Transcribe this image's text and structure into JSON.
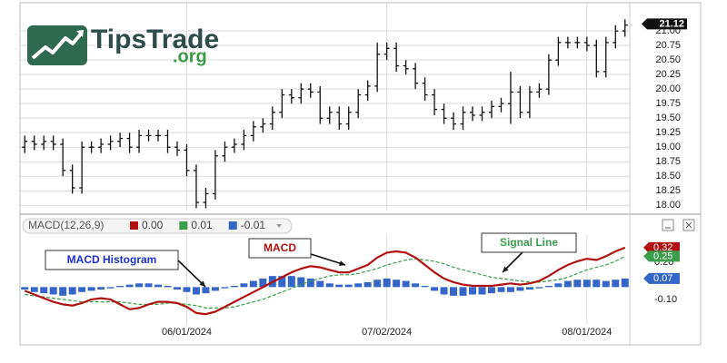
{
  "logo": {
    "name": "TipsTrade",
    "suffix": ".org"
  },
  "chart_data": [
    {
      "type": "ohlc",
      "color": "#111111",
      "ylim": [
        17.91,
        21.47
      ],
      "yticks": [
        {
          "value": 18,
          "label": "18.00"
        },
        {
          "value": 18.25,
          "label": "18.25"
        },
        {
          "value": 18.5,
          "label": "18.50"
        },
        {
          "value": 18.75,
          "label": "18.75"
        },
        {
          "value": 19,
          "label": "19.00"
        },
        {
          "value": 19.25,
          "label": "19.25"
        },
        {
          "value": 19.5,
          "label": "19.50"
        },
        {
          "value": 19.75,
          "label": "19.75"
        },
        {
          "value": 20,
          "label": "20.00"
        },
        {
          "value": 20.25,
          "label": "20.25"
        },
        {
          "value": 20.5,
          "label": "20.50"
        },
        {
          "value": 20.75,
          "label": "20.75"
        },
        {
          "value": 21,
          "label": "21.00"
        }
      ],
      "grid": true,
      "last_price": {
        "value": 21.12,
        "label": "21.12"
      },
      "open": [
        19.0,
        19.1,
        19.05,
        19.1,
        19.05,
        18.6,
        18.3,
        19.0,
        19.0,
        19.05,
        19.1,
        19.15,
        19.0,
        19.2,
        19.2,
        19.2,
        19.0,
        18.95,
        18.6,
        18.05,
        18.2,
        18.85,
        19.0,
        19.05,
        19.2,
        19.35,
        19.4,
        19.6,
        19.9,
        19.85,
        20.0,
        19.95,
        19.5,
        19.6,
        19.4,
        19.6,
        19.9,
        20.05,
        20.6,
        20.7,
        20.4,
        20.35,
        20.1,
        19.9,
        19.65,
        19.5,
        19.4,
        19.6,
        19.55,
        19.6,
        19.7,
        19.75,
        19.95,
        19.6,
        19.95,
        20.0,
        20.5,
        20.8,
        20.8,
        20.8,
        20.75,
        20.3,
        20.8,
        21.0
      ],
      "high": [
        19.2,
        19.2,
        19.2,
        19.2,
        19.15,
        18.7,
        19.1,
        19.1,
        19.15,
        19.2,
        19.25,
        19.25,
        19.3,
        19.3,
        19.3,
        19.3,
        19.1,
        19.05,
        18.7,
        18.3,
        18.95,
        19.1,
        19.15,
        19.3,
        19.45,
        19.5,
        19.7,
        20.0,
        20.0,
        20.1,
        20.1,
        20.05,
        19.7,
        19.7,
        19.7,
        20.0,
        20.15,
        20.8,
        20.8,
        20.8,
        20.5,
        20.45,
        20.2,
        20.0,
        19.75,
        19.6,
        19.7,
        19.7,
        19.7,
        19.8,
        19.85,
        20.3,
        20.05,
        20.05,
        20.1,
        20.6,
        20.9,
        20.9,
        20.9,
        20.9,
        20.85,
        20.9,
        21.1,
        21.2
      ],
      "low": [
        18.9,
        18.95,
        18.95,
        18.95,
        18.5,
        18.2,
        18.2,
        18.9,
        18.9,
        18.95,
        19.0,
        18.9,
        18.9,
        19.1,
        19.1,
        18.9,
        18.85,
        18.5,
        17.95,
        17.95,
        18.1,
        18.75,
        18.9,
        18.95,
        19.1,
        19.25,
        19.3,
        19.5,
        19.75,
        19.75,
        19.85,
        19.4,
        19.4,
        19.3,
        19.3,
        19.5,
        19.8,
        19.95,
        20.5,
        20.3,
        20.25,
        20.0,
        19.8,
        19.55,
        19.4,
        19.3,
        19.3,
        19.45,
        19.45,
        19.5,
        19.6,
        19.4,
        19.5,
        19.5,
        19.85,
        19.9,
        20.4,
        20.7,
        20.7,
        20.65,
        20.2,
        20.2,
        20.7,
        20.9
      ],
      "close": [
        19.1,
        19.05,
        19.1,
        19.05,
        18.6,
        18.3,
        19.0,
        19.0,
        19.05,
        19.1,
        19.15,
        19.0,
        19.2,
        19.2,
        19.2,
        19.0,
        18.95,
        18.6,
        18.05,
        18.2,
        18.85,
        19.0,
        19.05,
        19.2,
        19.35,
        19.4,
        19.6,
        19.9,
        19.85,
        20.0,
        19.95,
        19.5,
        19.6,
        19.4,
        19.6,
        19.9,
        20.05,
        20.6,
        20.7,
        20.4,
        20.35,
        20.1,
        19.9,
        19.65,
        19.5,
        19.4,
        19.6,
        19.55,
        19.6,
        19.7,
        19.75,
        19.95,
        19.6,
        19.95,
        20.0,
        20.5,
        20.8,
        20.8,
        20.8,
        20.75,
        20.3,
        20.8,
        21.0,
        21.1
      ]
    },
    {
      "type": "macd",
      "title": "MACD(12,26,9)",
      "categories": [
        null,
        null,
        null,
        null,
        null,
        null,
        null,
        null,
        null,
        null,
        null,
        null,
        null,
        null,
        null,
        null,
        null,
        "06/01/2024",
        null,
        null,
        null,
        null,
        null,
        null,
        null,
        null,
        null,
        null,
        null,
        null,
        null,
        null,
        null,
        null,
        null,
        null,
        null,
        null,
        "07/02/2024",
        null,
        null,
        null,
        null,
        null,
        null,
        null,
        null,
        null,
        null,
        null,
        null,
        null,
        null,
        null,
        null,
        null,
        null,
        null,
        null,
        "08/01/2024",
        null,
        null,
        null,
        null
      ],
      "ylim": [
        -0.41,
        0.43
      ],
      "yticks": [
        {
          "value": 0.2,
          "label": "0.20"
        },
        {
          "value": -0.1,
          "label": "-0.10"
        }
      ],
      "series": [
        {
          "name": "MACD",
          "type": "line",
          "color": "#b01212",
          "legend_label": "0.00",
          "last_tag": {
            "value": 0.32,
            "label": "0.32"
          },
          "values": [
            -0.03,
            -0.06,
            -0.09,
            -0.12,
            -0.14,
            -0.15,
            -0.13,
            -0.1,
            -0.09,
            -0.1,
            -0.14,
            -0.18,
            -0.17,
            -0.14,
            -0.12,
            -0.12,
            -0.13,
            -0.16,
            -0.21,
            -0.22,
            -0.2,
            -0.16,
            -0.12,
            -0.08,
            -0.04,
            0.0,
            0.04,
            0.08,
            0.12,
            0.15,
            0.17,
            0.16,
            0.14,
            0.12,
            0.12,
            0.15,
            0.18,
            0.24,
            0.28,
            0.29,
            0.28,
            0.24,
            0.18,
            0.12,
            0.07,
            0.04,
            0.02,
            0.01,
            0.01,
            0.01,
            0.02,
            0.03,
            0.02,
            0.03,
            0.05,
            0.09,
            0.14,
            0.18,
            0.21,
            0.23,
            0.22,
            0.25,
            0.29,
            0.32
          ]
        },
        {
          "name": "Signal Line",
          "type": "line",
          "dashed": true,
          "color": "#3a9e4a",
          "legend_label": "0.01",
          "last_tag": {
            "value": 0.25,
            "label": "0.25"
          },
          "values": [
            -0.06,
            -0.07,
            -0.08,
            -0.09,
            -0.1,
            -0.11,
            -0.12,
            -0.12,
            -0.12,
            -0.12,
            -0.12,
            -0.13,
            -0.14,
            -0.14,
            -0.14,
            -0.13,
            -0.13,
            -0.14,
            -0.15,
            -0.17,
            -0.17,
            -0.17,
            -0.16,
            -0.14,
            -0.12,
            -0.1,
            -0.07,
            -0.04,
            -0.01,
            0.02,
            0.05,
            0.07,
            0.09,
            0.1,
            0.1,
            0.11,
            0.13,
            0.15,
            0.18,
            0.2,
            0.22,
            0.23,
            0.22,
            0.21,
            0.19,
            0.16,
            0.14,
            0.12,
            0.1,
            0.08,
            0.07,
            0.06,
            0.05,
            0.04,
            0.04,
            0.05,
            0.06,
            0.08,
            0.11,
            0.14,
            0.16,
            0.18,
            0.21,
            0.25
          ]
        },
        {
          "name": "MACD Histogram",
          "type": "bar",
          "color": "#3466c8",
          "legend_label": "-0.01",
          "last_tag": {
            "value": 0.07,
            "label": "0.07"
          },
          "values": [
            -0.02,
            -0.04,
            -0.05,
            -0.06,
            -0.07,
            -0.06,
            -0.04,
            -0.03,
            -0.02,
            -0.01,
            0.01,
            0.02,
            0.03,
            0.03,
            0.02,
            0.01,
            -0.02,
            -0.04,
            -0.06,
            -0.05,
            -0.03,
            -0.01,
            0.01,
            0.03,
            0.05,
            0.07,
            0.09,
            0.09,
            0.09,
            0.08,
            0.07,
            0.05,
            0.03,
            0.02,
            0.02,
            0.03,
            0.04,
            0.06,
            0.07,
            0.06,
            0.05,
            0.03,
            0.01,
            -0.03,
            -0.06,
            -0.07,
            -0.07,
            -0.06,
            -0.06,
            -0.05,
            -0.04,
            -0.04,
            -0.03,
            -0.02,
            -0.01,
            0.01,
            0.03,
            0.05,
            0.06,
            0.06,
            0.06,
            0.05,
            0.06,
            0.07
          ]
        }
      ]
    }
  ]
}
